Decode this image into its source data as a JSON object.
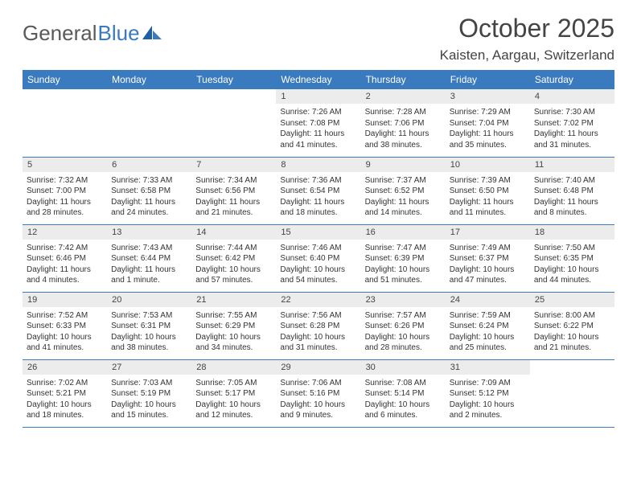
{
  "logo": {
    "text_gray": "General",
    "text_blue": "Blue"
  },
  "header": {
    "month_title": "October 2025",
    "location": "Kaisten, Aargau, Switzerland"
  },
  "colors": {
    "header_bar": "#3a7abf",
    "daynum_bg": "#ececec",
    "row_border": "#3a7abf",
    "text_main": "#444444",
    "text_body": "#333333",
    "logo_gray": "#5a5a5a",
    "logo_blue": "#3a7abf",
    "background": "#ffffff"
  },
  "weekdays": [
    "Sunday",
    "Monday",
    "Tuesday",
    "Wednesday",
    "Thursday",
    "Friday",
    "Saturday"
  ],
  "weeks": [
    [
      null,
      null,
      null,
      {
        "day": "1",
        "sunrise": "Sunrise: 7:26 AM",
        "sunset": "Sunset: 7:08 PM",
        "daylight": "Daylight: 11 hours and 41 minutes."
      },
      {
        "day": "2",
        "sunrise": "Sunrise: 7:28 AM",
        "sunset": "Sunset: 7:06 PM",
        "daylight": "Daylight: 11 hours and 38 minutes."
      },
      {
        "day": "3",
        "sunrise": "Sunrise: 7:29 AM",
        "sunset": "Sunset: 7:04 PM",
        "daylight": "Daylight: 11 hours and 35 minutes."
      },
      {
        "day": "4",
        "sunrise": "Sunrise: 7:30 AM",
        "sunset": "Sunset: 7:02 PM",
        "daylight": "Daylight: 11 hours and 31 minutes."
      }
    ],
    [
      {
        "day": "5",
        "sunrise": "Sunrise: 7:32 AM",
        "sunset": "Sunset: 7:00 PM",
        "daylight": "Daylight: 11 hours and 28 minutes."
      },
      {
        "day": "6",
        "sunrise": "Sunrise: 7:33 AM",
        "sunset": "Sunset: 6:58 PM",
        "daylight": "Daylight: 11 hours and 24 minutes."
      },
      {
        "day": "7",
        "sunrise": "Sunrise: 7:34 AM",
        "sunset": "Sunset: 6:56 PM",
        "daylight": "Daylight: 11 hours and 21 minutes."
      },
      {
        "day": "8",
        "sunrise": "Sunrise: 7:36 AM",
        "sunset": "Sunset: 6:54 PM",
        "daylight": "Daylight: 11 hours and 18 minutes."
      },
      {
        "day": "9",
        "sunrise": "Sunrise: 7:37 AM",
        "sunset": "Sunset: 6:52 PM",
        "daylight": "Daylight: 11 hours and 14 minutes."
      },
      {
        "day": "10",
        "sunrise": "Sunrise: 7:39 AM",
        "sunset": "Sunset: 6:50 PM",
        "daylight": "Daylight: 11 hours and 11 minutes."
      },
      {
        "day": "11",
        "sunrise": "Sunrise: 7:40 AM",
        "sunset": "Sunset: 6:48 PM",
        "daylight": "Daylight: 11 hours and 8 minutes."
      }
    ],
    [
      {
        "day": "12",
        "sunrise": "Sunrise: 7:42 AM",
        "sunset": "Sunset: 6:46 PM",
        "daylight": "Daylight: 11 hours and 4 minutes."
      },
      {
        "day": "13",
        "sunrise": "Sunrise: 7:43 AM",
        "sunset": "Sunset: 6:44 PM",
        "daylight": "Daylight: 11 hours and 1 minute."
      },
      {
        "day": "14",
        "sunrise": "Sunrise: 7:44 AM",
        "sunset": "Sunset: 6:42 PM",
        "daylight": "Daylight: 10 hours and 57 minutes."
      },
      {
        "day": "15",
        "sunrise": "Sunrise: 7:46 AM",
        "sunset": "Sunset: 6:40 PM",
        "daylight": "Daylight: 10 hours and 54 minutes."
      },
      {
        "day": "16",
        "sunrise": "Sunrise: 7:47 AM",
        "sunset": "Sunset: 6:39 PM",
        "daylight": "Daylight: 10 hours and 51 minutes."
      },
      {
        "day": "17",
        "sunrise": "Sunrise: 7:49 AM",
        "sunset": "Sunset: 6:37 PM",
        "daylight": "Daylight: 10 hours and 47 minutes."
      },
      {
        "day": "18",
        "sunrise": "Sunrise: 7:50 AM",
        "sunset": "Sunset: 6:35 PM",
        "daylight": "Daylight: 10 hours and 44 minutes."
      }
    ],
    [
      {
        "day": "19",
        "sunrise": "Sunrise: 7:52 AM",
        "sunset": "Sunset: 6:33 PM",
        "daylight": "Daylight: 10 hours and 41 minutes."
      },
      {
        "day": "20",
        "sunrise": "Sunrise: 7:53 AM",
        "sunset": "Sunset: 6:31 PM",
        "daylight": "Daylight: 10 hours and 38 minutes."
      },
      {
        "day": "21",
        "sunrise": "Sunrise: 7:55 AM",
        "sunset": "Sunset: 6:29 PM",
        "daylight": "Daylight: 10 hours and 34 minutes."
      },
      {
        "day": "22",
        "sunrise": "Sunrise: 7:56 AM",
        "sunset": "Sunset: 6:28 PM",
        "daylight": "Daylight: 10 hours and 31 minutes."
      },
      {
        "day": "23",
        "sunrise": "Sunrise: 7:57 AM",
        "sunset": "Sunset: 6:26 PM",
        "daylight": "Daylight: 10 hours and 28 minutes."
      },
      {
        "day": "24",
        "sunrise": "Sunrise: 7:59 AM",
        "sunset": "Sunset: 6:24 PM",
        "daylight": "Daylight: 10 hours and 25 minutes."
      },
      {
        "day": "25",
        "sunrise": "Sunrise: 8:00 AM",
        "sunset": "Sunset: 6:22 PM",
        "daylight": "Daylight: 10 hours and 21 minutes."
      }
    ],
    [
      {
        "day": "26",
        "sunrise": "Sunrise: 7:02 AM",
        "sunset": "Sunset: 5:21 PM",
        "daylight": "Daylight: 10 hours and 18 minutes."
      },
      {
        "day": "27",
        "sunrise": "Sunrise: 7:03 AM",
        "sunset": "Sunset: 5:19 PM",
        "daylight": "Daylight: 10 hours and 15 minutes."
      },
      {
        "day": "28",
        "sunrise": "Sunrise: 7:05 AM",
        "sunset": "Sunset: 5:17 PM",
        "daylight": "Daylight: 10 hours and 12 minutes."
      },
      {
        "day": "29",
        "sunrise": "Sunrise: 7:06 AM",
        "sunset": "Sunset: 5:16 PM",
        "daylight": "Daylight: 10 hours and 9 minutes."
      },
      {
        "day": "30",
        "sunrise": "Sunrise: 7:08 AM",
        "sunset": "Sunset: 5:14 PM",
        "daylight": "Daylight: 10 hours and 6 minutes."
      },
      {
        "day": "31",
        "sunrise": "Sunrise: 7:09 AM",
        "sunset": "Sunset: 5:12 PM",
        "daylight": "Daylight: 10 hours and 2 minutes."
      },
      null
    ]
  ]
}
